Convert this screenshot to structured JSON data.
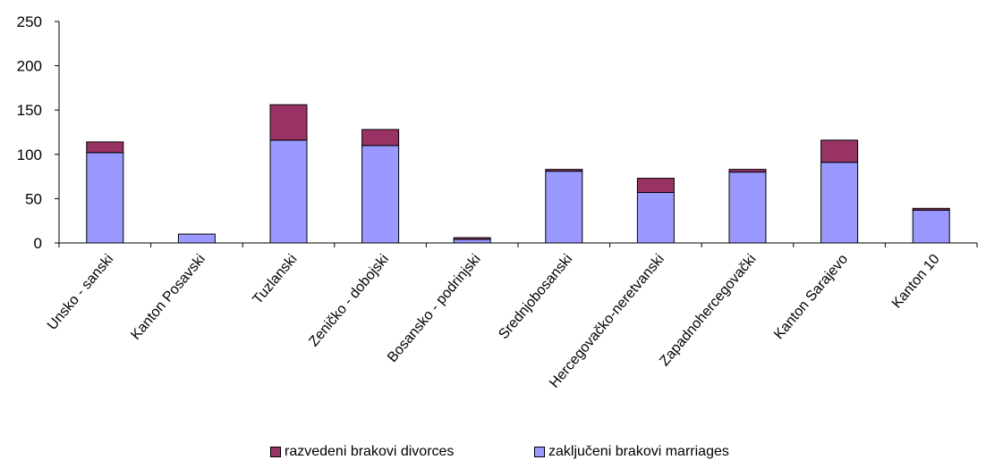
{
  "chart_data": {
    "type": "bar",
    "stacked": true,
    "title": "",
    "categories": [
      "Unsko - sanski",
      "Kanton Posavski",
      "Tuzlanski",
      "Zeničko - dobojski",
      "Bosansko - podrinjski",
      "Srednjobosanski",
      "Hercegovačko-neretvanski",
      "Zapadnohercegovački",
      "Kanton Sarajevo",
      "Kanton 10"
    ],
    "series": [
      {
        "name": "zaključeni brakovi marriages",
        "color": "#9999ff",
        "values": [
          102,
          10,
          116,
          110,
          4,
          81,
          57,
          80,
          91,
          37
        ]
      },
      {
        "name": "razvedeni brakovi divorces",
        "color": "#993366",
        "values": [
          12,
          0,
          40,
          18,
          2,
          2,
          16,
          3,
          25,
          2
        ]
      }
    ],
    "ylim": [
      0,
      250
    ],
    "yticks": [
      0,
      50,
      100,
      150,
      200,
      250
    ],
    "grid": false,
    "legend_position": "bottom"
  }
}
